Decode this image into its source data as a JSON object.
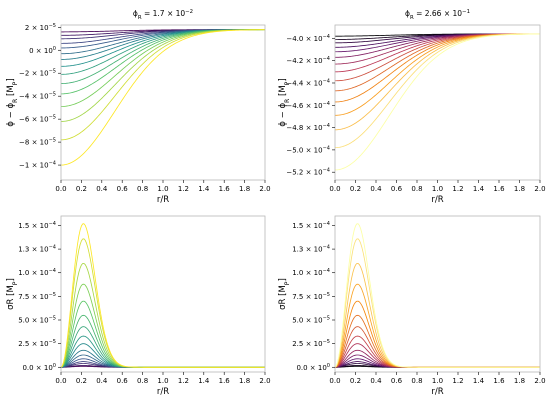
{
  "chart_data": [
    {
      "type": "line",
      "title": "ϕR = 1.7×10⁻²",
      "xlabel": "r/R",
      "ylabel": "ϕ − ϕR [MP]",
      "xlim": [
        0,
        2
      ],
      "ylim": [
        -0.000113,
        2.2e-05
      ],
      "xticks": [
        0,
        0.2,
        0.4,
        0.6,
        0.8,
        1.0,
        1.2,
        1.4,
        1.6,
        1.8,
        2.0
      ],
      "xtick_labels": [
        "0.0",
        "0.2",
        "0.4",
        "0.6",
        "0.8",
        "1.0",
        "1.2",
        "1.4",
        "1.6",
        "1.8",
        "2.0"
      ],
      "yticks": [
        2e-05,
        0,
        -2e-05,
        -4e-05,
        -6e-05,
        -8e-05,
        -0.0001
      ],
      "ytick_labels": [
        "2 × 10⁻⁵",
        "0 × 10⁰",
        "−2 × 10⁻⁵",
        "−4 × 10⁻⁵",
        "−6 × 10⁻⁵",
        "−8 × 10⁻⁵",
        "−1 × 10⁻⁴"
      ],
      "grid": false,
      "colormap": [
        "#440154",
        "#3b528b",
        "#21918c",
        "#5ec962",
        "#fde725"
      ],
      "curve_shape": "dip",
      "baseline": 1.8e-05,
      "series_extremes": [
        1.6e-05,
        1.3e-05,
        1e-05,
        6e-06,
        2e-06,
        -3e-06,
        -8e-06,
        -1.4e-05,
        -2.1e-05,
        -2.9e-05,
        -3.8e-05,
        -4.9e-05,
        -6.2e-05,
        -7.8e-05,
        -0.0001
      ]
    },
    {
      "type": "line",
      "title": "ϕR = 2.66×10⁻¹",
      "xlabel": "r/R",
      "ylabel": "ϕ − ϕR [MP]",
      "xlim": [
        0,
        2
      ],
      "ylim": [
        -0.000527,
        -0.000388
      ],
      "xticks": [
        0,
        0.2,
        0.4,
        0.6,
        0.8,
        1.0,
        1.2,
        1.4,
        1.6,
        1.8,
        2.0
      ],
      "xtick_labels": [
        "0.0",
        "0.2",
        "0.4",
        "0.6",
        "0.8",
        "1.0",
        "1.2",
        "1.4",
        "1.6",
        "1.8",
        "2.0"
      ],
      "yticks": [
        -0.0004,
        -0.00042,
        -0.00044,
        -0.00046,
        -0.00048,
        -0.0005,
        -0.00052
      ],
      "ytick_labels": [
        "−4.0 × 10⁻⁴",
        "−4.2 × 10⁻⁴",
        "−4.4 × 10⁻⁴",
        "−4.6 × 10⁻⁴",
        "−4.8 × 10⁻⁴",
        "−5.0 × 10⁻⁴",
        "−5.2 × 10⁻⁴"
      ],
      "grid": false,
      "colormap": [
        "#000004",
        "#57106e",
        "#bc3754",
        "#f98e09",
        "#fcffa4"
      ],
      "curve_shape": "dip",
      "baseline": -0.000396,
      "series_extremes": [
        -0.000398,
        -0.000401,
        -0.000404,
        -0.000408,
        -0.000412,
        -0.000417,
        -0.000423,
        -0.00043,
        -0.000438,
        -0.000447,
        -0.000457,
        -0.000469,
        -0.000482,
        -0.000498,
        -0.000518
      ]
    },
    {
      "type": "line",
      "title": "",
      "xlabel": "r/R",
      "ylabel": "σR [MP]",
      "xlim": [
        0,
        2
      ],
      "ylim": [
        -5e-06,
        0.00016
      ],
      "xticks": [
        0,
        0.2,
        0.4,
        0.6,
        0.8,
        1.0,
        1.2,
        1.4,
        1.6,
        1.8,
        2.0
      ],
      "xtick_labels": [
        "0.0",
        "0.2",
        "0.4",
        "0.6",
        "0.8",
        "1.0",
        "1.2",
        "1.4",
        "1.6",
        "1.8",
        "2.0"
      ],
      "yticks": [
        0,
        2.5e-05,
        5e-05,
        7.5e-05,
        0.0001,
        0.000125,
        0.00015
      ],
      "ytick_labels": [
        "0.0 × 10⁰",
        "2.5 × 10⁻⁵",
        "5.0 × 10⁻⁵",
        "7.5 × 10⁻⁵",
        "1.0 × 10⁻⁴",
        "1.3 × 10⁻⁴",
        "1.5 × 10⁻⁴"
      ],
      "grid": false,
      "colormap": [
        "#440154",
        "#3b528b",
        "#21918c",
        "#5ec962",
        "#fde725"
      ],
      "curve_shape": "bump",
      "baseline": 0,
      "series_extremes": [
        1e-06,
        2e-06,
        4e-06,
        6e-06,
        9e-06,
        1.3e-05,
        1.8e-05,
        2.5e-05,
        3.3e-05,
        4.3e-05,
        5.5e-05,
        7e-05,
        8.8e-05,
        0.00011,
        0.000136,
        0.000152
      ]
    },
    {
      "type": "line",
      "title": "",
      "xlabel": "r/R",
      "ylabel": "σR [MP]",
      "xlim": [
        0,
        2
      ],
      "ylim": [
        -5e-06,
        0.00016
      ],
      "xticks": [
        0,
        0.2,
        0.4,
        0.6,
        0.8,
        1.0,
        1.2,
        1.4,
        1.6,
        1.8,
        2.0
      ],
      "xtick_labels": [
        "0.0",
        "0.2",
        "0.4",
        "0.6",
        "0.8",
        "1.0",
        "1.2",
        "1.4",
        "1.6",
        "1.8",
        "2.0"
      ],
      "yticks": [
        0,
        2.5e-05,
        5e-05,
        7.5e-05,
        0.0001,
        0.000125,
        0.00015
      ],
      "ytick_labels": [
        "0.0 × 10⁰",
        "2.5 × 10⁻⁵",
        "5.0 × 10⁻⁵",
        "7.5 × 10⁻⁵",
        "1.0 × 10⁻⁴",
        "1.3 × 10⁻⁴",
        "1.5 × 10⁻⁴"
      ],
      "grid": false,
      "colormap": [
        "#000004",
        "#57106e",
        "#bc3754",
        "#f98e09",
        "#fcffa4"
      ],
      "curve_shape": "bump",
      "baseline": 0,
      "series_extremes": [
        1e-06,
        2e-06,
        4e-06,
        6e-06,
        9e-06,
        1.3e-05,
        1.8e-05,
        2.5e-05,
        3.3e-05,
        4.3e-05,
        5.5e-05,
        7e-05,
        8.8e-05,
        0.00011,
        0.000136,
        0.000152
      ]
    }
  ]
}
